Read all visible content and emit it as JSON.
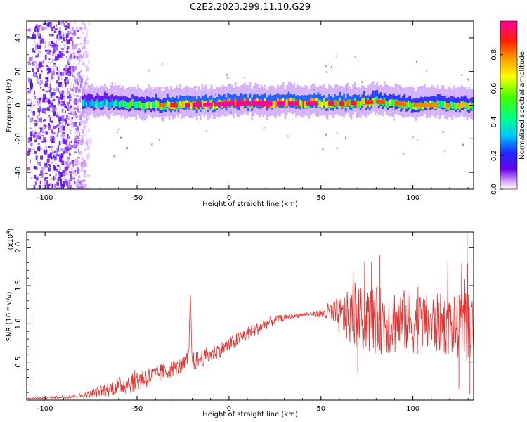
{
  "title": "C2E2.2023.299.11.10.G29",
  "chart_data": [
    {
      "type": "heatmap",
      "xlabel": "Height of straight line (km)",
      "ylabel": "Frequency (Hz)",
      "xlim": [
        -110,
        133
      ],
      "ylim": [
        -50,
        50
      ],
      "xticks": [
        -100,
        -50,
        0,
        50,
        100
      ],
      "yticks": [
        -40,
        -20,
        0,
        20,
        40
      ],
      "colorbar": {
        "label": "Normalized spectral amplitude",
        "range": [
          0.0,
          1.0
        ],
        "ticks": [
          "0.0",
          "0.2",
          "0.4",
          "0.6",
          "0.8"
        ],
        "colormap": "rainbow (white-violet-blue-cyan-green-yellow-orange-red-magenta)"
      },
      "ridge": {
        "description": "dominant band near 0 Hz from about -80 km to 133 km",
        "x": [
          -80,
          -60,
          -40,
          -20,
          0,
          20,
          40,
          60,
          80,
          100,
          120,
          133
        ],
        "freq": [
          1,
          1,
          0,
          0,
          1,
          1,
          1,
          1,
          2,
          0,
          0,
          0
        ],
        "peak_amplitude": [
          0.4,
          0.5,
          0.7,
          0.9,
          1.0,
          0.95,
          0.9,
          0.85,
          0.75,
          0.7,
          0.7,
          0.6
        ]
      },
      "noise_region": {
        "x_range": [
          -110,
          -80
        ],
        "freq_range": [
          -50,
          50
        ]
      }
    },
    {
      "type": "line",
      "xlabel": "Height of straight line (km)",
      "ylabel": "SNR (10 * v/v)",
      "yscale_label": "(x10^4)",
      "xlim": [
        -110,
        133
      ],
      "ylim": [
        0,
        2.2
      ],
      "xticks": [
        -100,
        -50,
        0,
        50,
        100
      ],
      "yticks": [
        "0.5",
        "1.0",
        "1.5",
        "2.0"
      ],
      "color": "#e8302e",
      "series": [
        {
          "x": [
            -110,
            -100,
            -90,
            -80,
            -75,
            -70,
            -65,
            -60,
            -55,
            -50,
            -45,
            -40,
            -35,
            -30,
            -25,
            -22,
            -21,
            -20,
            -15,
            -10,
            -5,
            0,
            5,
            10,
            15,
            20,
            25,
            30,
            35,
            40,
            45,
            50,
            55,
            60,
            65,
            70,
            75,
            80,
            85,
            90,
            95,
            100,
            105,
            110,
            115,
            120,
            125,
            130,
            133
          ],
          "y": [
            0.02,
            0.03,
            0.04,
            0.06,
            0.08,
            0.12,
            0.15,
            0.18,
            0.22,
            0.26,
            0.3,
            0.32,
            0.38,
            0.42,
            0.45,
            0.55,
            1.32,
            0.5,
            0.55,
            0.6,
            0.66,
            0.72,
            0.8,
            0.87,
            0.93,
            1.0,
            1.05,
            1.08,
            1.1,
            1.12,
            1.13,
            1.13,
            1.15,
            1.1,
            1.08,
            1.07,
            1.06,
            1.05,
            1.04,
            1.04,
            1.03,
            1.02,
            1.01,
            1.0,
            1.0,
            0.98,
            0.96,
            0.95,
            0.93
          ],
          "noise_amplitude": [
            0.01,
            0.01,
            0.02,
            0.03,
            0.05,
            0.08,
            0.1,
            0.12,
            0.14,
            0.15,
            0.14,
            0.13,
            0.12,
            0.11,
            0.11,
            0.12,
            0.1,
            0.12,
            0.12,
            0.11,
            0.1,
            0.1,
            0.1,
            0.1,
            0.09,
            0.08,
            0.06,
            0.04,
            0.03,
            0.03,
            0.03,
            0.06,
            0.15,
            0.25,
            0.35,
            0.4,
            0.45,
            0.45,
            0.45,
            0.45,
            0.42,
            0.42,
            0.4,
            0.4,
            0.4,
            0.4,
            0.42,
            0.45,
            0.45
          ]
        }
      ]
    }
  ]
}
